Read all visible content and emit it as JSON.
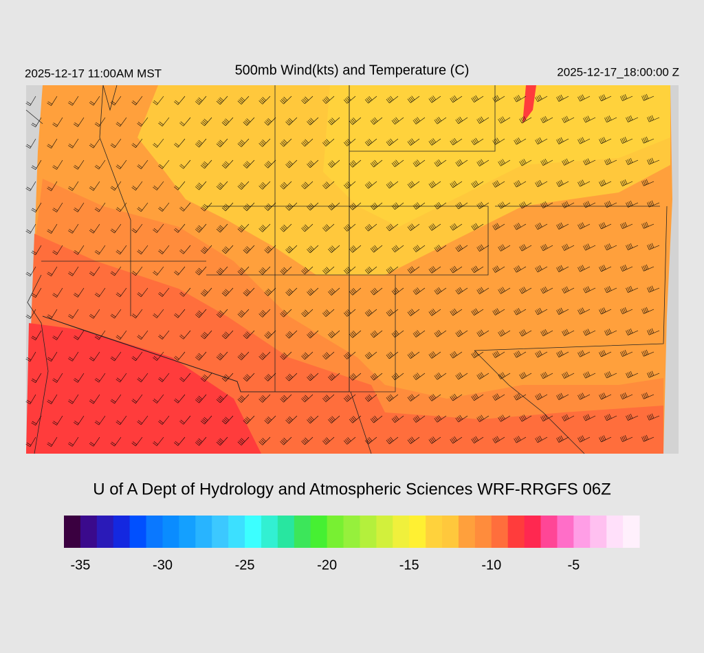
{
  "header": {
    "title": "500mb Wind(kts) and Temperature (C)",
    "local_time": "2025-12-17 11:00AM MST",
    "valid_time": "2025-12-17_18:00:00 Z"
  },
  "credit": "U of A Dept of Hydrology and Atmospheric Sciences WRF-RRGFS 06Z",
  "colorbar": {
    "range": [
      -36,
      -1
    ],
    "colors": [
      "#3a0040",
      "#3a0a8c",
      "#2a1ab8",
      "#1428e0",
      "#0050ff",
      "#0a78ff",
      "#0a8cff",
      "#14a0ff",
      "#28b4ff",
      "#3cc8ff",
      "#3ce0ff",
      "#3cffff",
      "#32f0d2",
      "#28e6a0",
      "#3ce65a",
      "#46f032",
      "#78f032",
      "#96f03c",
      "#b4f03c",
      "#d2f03c",
      "#f0f03c",
      "#fff032",
      "#ffd23c",
      "#ffc83c",
      "#ffa03c",
      "#ff8c3c",
      "#ff6e3c",
      "#ff3c3c",
      "#ff2850",
      "#ff4696",
      "#ff6ec8",
      "#ff9ee6",
      "#ffc0f0",
      "#ffe0fa",
      "#fff0fc"
    ],
    "ticks": [
      -35,
      -30,
      -25,
      -20,
      -15,
      -10,
      -5
    ]
  }
}
